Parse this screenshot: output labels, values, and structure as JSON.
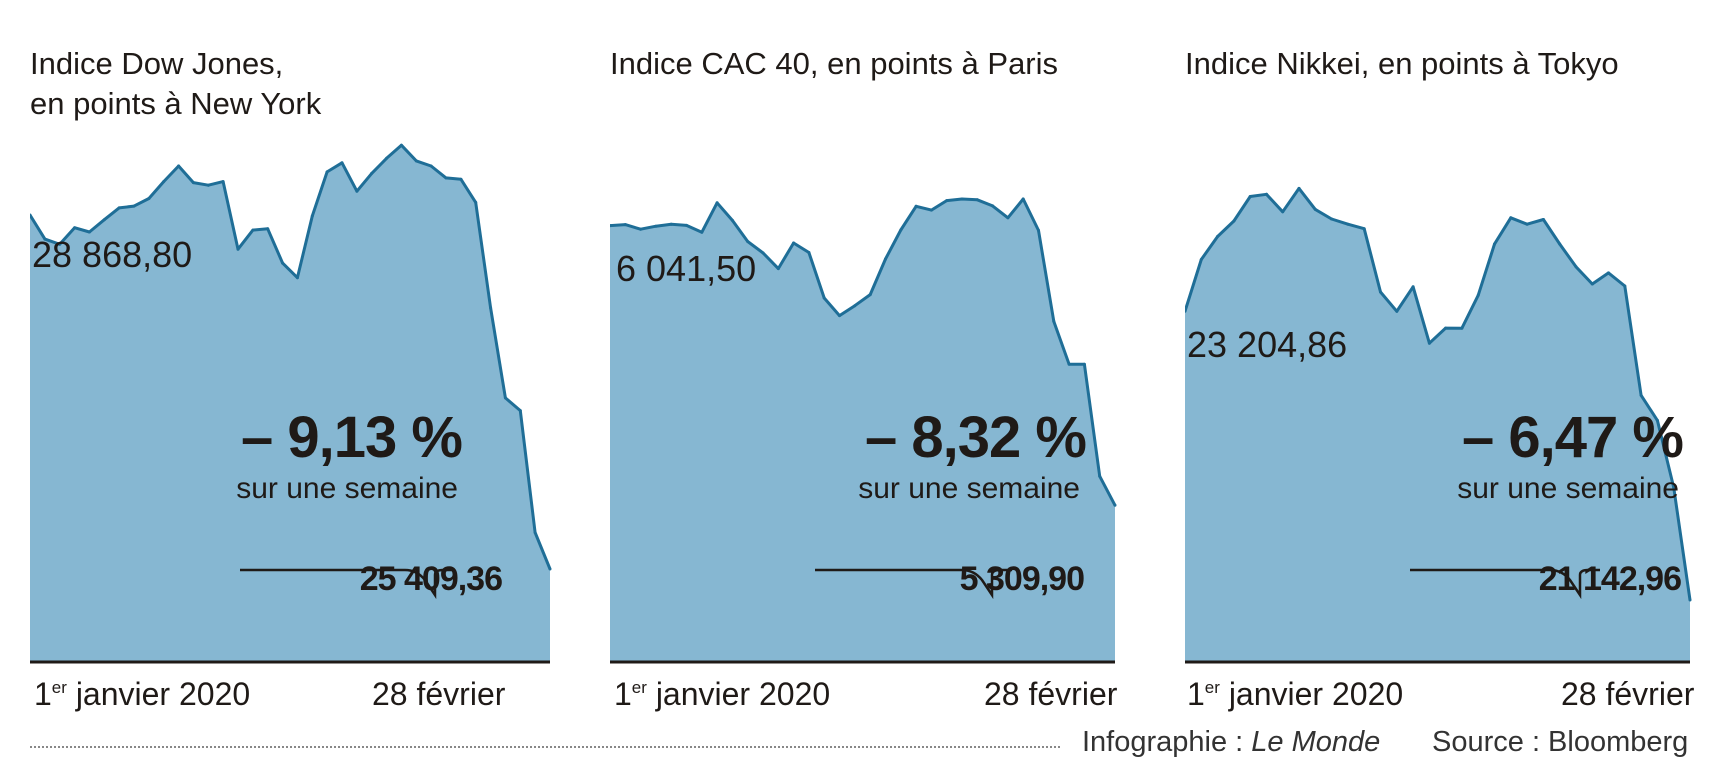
{
  "chart_data": [
    {
      "type": "area",
      "title": "Indice Dow Jones,\nen points à New York",
      "start_value_label": "28 868,80",
      "end_value_label": "25 409,36",
      "change_label": "– 9,13 %",
      "change_sub": "sur une semaine",
      "x_start_label": "1",
      "x_start_sup": "er",
      "x_start_rest": " janvier 2020",
      "x_end_label": "28 février",
      "ylim": [
        24500,
        29700
      ],
      "values": [
        28868.8,
        28634,
        28583,
        28745,
        28703,
        28823,
        28939,
        28956,
        29030,
        29196,
        29348,
        29186,
        29160,
        29196,
        28535,
        28722,
        28734,
        28399,
        28256,
        28859,
        29290,
        29379,
        29102,
        29276,
        29423,
        29551,
        29398,
        29348,
        29232,
        29219,
        28992,
        27961,
        27081,
        26957,
        25766,
        25409.36
      ],
      "fill": "#86b7d2",
      "line": "#1f6e97"
    },
    {
      "type": "area",
      "title": "Indice CAC 40, en points à Paris",
      "start_value_label": "6 041,50",
      "end_value_label": "5 309,90",
      "change_label": "– 8,32 %",
      "change_sub": "sur une semaine",
      "x_start_label": "1",
      "x_start_sup": "er",
      "x_start_rest": " janvier 2020",
      "x_end_label": "28 février",
      "ylim": [
        4900,
        6200
      ],
      "values": [
        6041.5,
        6044,
        6032,
        6040,
        6045,
        6042,
        6024,
        6101,
        6055,
        6000,
        5970,
        5929,
        5996,
        5971,
        5852,
        5806,
        5832,
        5861,
        5954,
        6030,
        6092,
        6082,
        6107,
        6111,
        6109,
        6093,
        6062,
        6111,
        6029,
        5791,
        5679,
        5679,
        5386,
        5309.9
      ],
      "fill": "#86b7d2",
      "line": "#1f6e97"
    },
    {
      "type": "area",
      "title": "Indice Nikkei, en points à Tokyo",
      "start_value_label": "23 204,86",
      "end_value_label": "21 142,96",
      "change_label": "– 6,47 %",
      "change_sub": "sur une semaine",
      "x_start_label": "1",
      "x_start_sup": "er",
      "x_start_rest": " janvier 2020",
      "x_end_label": "28 février",
      "ylim": [
        20700,
        24250
      ],
      "values": [
        23204.86,
        23575,
        23739,
        23850,
        24025,
        24041,
        23916,
        24083,
        23933,
        23864,
        23827,
        23795,
        23343,
        23205,
        23380,
        22977,
        23085,
        23084,
        23319,
        23685,
        23873,
        23827,
        23861,
        23686,
        23523,
        23400,
        23479,
        23386,
        22605,
        22426,
        21948,
        21142.96
      ],
      "fill": "#86b7d2",
      "line": "#1f6e97"
    }
  ],
  "footer": {
    "credit_prefix": "Infographie : ",
    "credit_name": "Le Monde",
    "source": "Source : Bloomberg"
  }
}
